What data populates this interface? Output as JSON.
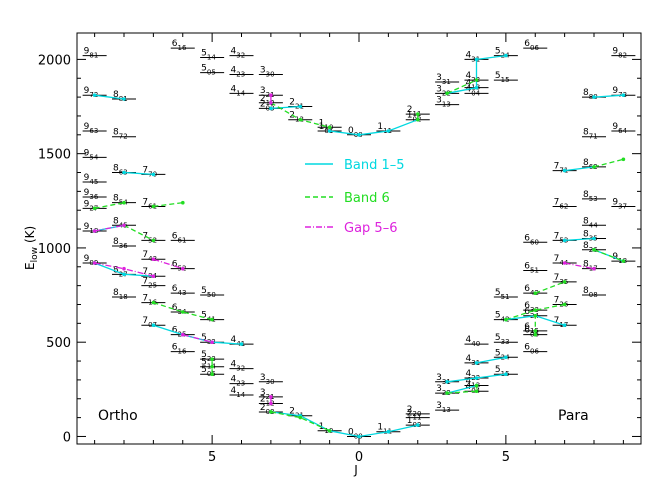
{
  "chart_data": {
    "type": "line",
    "ylabel": "E_low (K)",
    "ylabel_main": "E",
    "ylabel_sub": "low",
    "ylabel_unit": "(K)",
    "xlabel": "J",
    "ylim": [
      -40,
      2140
    ],
    "y_ticks": [
      0,
      500,
      1000,
      1500,
      2000
    ],
    "x_ticks": [
      {
        "pos": -5,
        "label": "5"
      },
      {
        "pos": 0,
        "label": "0"
      },
      {
        "pos": 5,
        "label": "5"
      }
    ],
    "xlim": [
      -9.6,
      9.6
    ],
    "left_corner_label": "Ortho",
    "right_corner_label": "Para",
    "legend": [
      {
        "label": "Band 1–5",
        "color": "#00d8e0",
        "style": "solid"
      },
      {
        "label": "Band 6",
        "color": "#22dd22",
        "style": "dashed"
      },
      {
        "label": "Gap 5–6",
        "color": "#dd22dd",
        "style": "dashdot"
      }
    ],
    "levels": [
      {
        "J": -1,
        "E": 30,
        "t": "1",
        "s": "10"
      },
      {
        "J": 0,
        "E": 0,
        "t": "0",
        "s": "00"
      },
      {
        "J": 1,
        "E": 25,
        "t": "1",
        "s": "11"
      },
      {
        "J": 2,
        "E": 60,
        "t": "1",
        "s": "02"
      },
      {
        "J": 2,
        "E": 120,
        "t": "2",
        "s": "20"
      },
      {
        "J": 2,
        "E": 100,
        "t": "2",
        "s": "11"
      },
      {
        "J": 3,
        "E": 140,
        "t": "3",
        "s": "13"
      },
      {
        "J": -2,
        "E": 110,
        "t": "2",
        "s": "21"
      },
      {
        "J": -3,
        "E": 130,
        "t": "2",
        "s": "03"
      },
      {
        "J": -3,
        "E": 175,
        "t": "2",
        "s": "12"
      },
      {
        "J": -3,
        "E": 210,
        "t": "3",
        "s": "21"
      },
      {
        "J": -4,
        "E": 220,
        "t": "4",
        "s": "14"
      },
      {
        "J": -3,
        "E": 290,
        "t": "3",
        "s": "30"
      },
      {
        "J": -5,
        "E": 330,
        "t": "5",
        "s": "05"
      },
      {
        "J": -5,
        "E": 370,
        "t": "5",
        "s": "14"
      },
      {
        "J": -5,
        "E": 410,
        "t": "5",
        "s": "23"
      },
      {
        "J": -4,
        "E": 280,
        "t": "4",
        "s": "23"
      },
      {
        "J": -4,
        "E": 360,
        "t": "4",
        "s": "32"
      },
      {
        "J": -4,
        "E": 490,
        "t": "4",
        "s": "41"
      },
      {
        "J": -6,
        "E": 450,
        "t": "6",
        "s": "16"
      },
      {
        "J": -6,
        "E": 540,
        "t": "6",
        "s": "25"
      },
      {
        "J": -5,
        "E": 500,
        "t": "5",
        "s": "32"
      },
      {
        "J": -5,
        "E": 620,
        "t": "5",
        "s": "41"
      },
      {
        "J": -5,
        "E": 750,
        "t": "5",
        "s": "50"
      },
      {
        "J": -7,
        "E": 590,
        "t": "7",
        "s": "07"
      },
      {
        "J": -6,
        "E": 660,
        "t": "6",
        "s": "34"
      },
      {
        "J": -6,
        "E": 760,
        "t": "6",
        "s": "43"
      },
      {
        "J": -7,
        "E": 710,
        "t": "7",
        "s": "16"
      },
      {
        "J": -7,
        "E": 800,
        "t": "7",
        "s": "25"
      },
      {
        "J": -7,
        "E": 850,
        "t": "7",
        "s": "34"
      },
      {
        "J": -7,
        "E": 940,
        "t": "7",
        "s": "43"
      },
      {
        "J": -6,
        "E": 890,
        "t": "6",
        "s": "52"
      },
      {
        "J": -8,
        "E": 740,
        "t": "8",
        "s": "18"
      },
      {
        "J": -8,
        "E": 860,
        "t": "8",
        "s": "27"
      },
      {
        "J": -9,
        "E": 920,
        "t": "9",
        "s": "09"
      },
      {
        "J": -8,
        "E": 1010,
        "t": "8",
        "s": "36"
      },
      {
        "J": -9,
        "E": 1090,
        "t": "9",
        "s": "18"
      },
      {
        "J": -8,
        "E": 1120,
        "t": "8",
        "s": "45"
      },
      {
        "J": -7,
        "E": 1040,
        "t": "7",
        "s": "52"
      },
      {
        "J": -6,
        "E": 1040,
        "t": "6",
        "s": "61"
      },
      {
        "J": -9,
        "E": 1210,
        "t": "9",
        "s": "27"
      },
      {
        "J": -8,
        "E": 1240,
        "t": "8",
        "s": "54"
      },
      {
        "J": -7,
        "E": 1220,
        "t": "7",
        "s": "61"
      },
      {
        "J": -9,
        "E": 1270,
        "t": "9",
        "s": "36"
      },
      {
        "J": -9,
        "E": 1350,
        "t": "9",
        "s": "45"
      },
      {
        "J": -8,
        "E": 1400,
        "t": "8",
        "s": "63"
      },
      {
        "J": -7,
        "E": 1390,
        "t": "7",
        "s": "70"
      },
      {
        "J": -9,
        "E": 1480,
        "t": "9",
        "s": "54"
      },
      {
        "J": -9,
        "E": 1620,
        "t": "9",
        "s": "63"
      },
      {
        "J": -8,
        "E": 1590,
        "t": "8",
        "s": "72"
      },
      {
        "J": -9,
        "E": 1810,
        "t": "9",
        "s": "72"
      },
      {
        "J": -8,
        "E": 1790,
        "t": "8",
        "s": "81"
      },
      {
        "J": -9,
        "E": 2020,
        "t": "9",
        "s": "81"
      },
      {
        "J": -6,
        "E": 2060,
        "t": "6",
        "s": "16"
      },
      {
        "J": -5,
        "E": 2010,
        "t": "5",
        "s": "14"
      },
      {
        "J": -4,
        "E": 2020,
        "t": "4",
        "s": "32"
      },
      {
        "J": -5,
        "E": 1930,
        "t": "5",
        "s": "05"
      },
      {
        "J": -4,
        "E": 1920,
        "t": "4",
        "s": "23"
      },
      {
        "J": -3,
        "E": 1920,
        "t": "3",
        "s": "30"
      },
      {
        "J": -4,
        "E": 1820,
        "t": "4",
        "s": "14"
      },
      {
        "J": -3,
        "E": 1810,
        "t": "3",
        "s": "21"
      },
      {
        "J": -3,
        "E": 1770,
        "t": "2",
        "s": "12"
      },
      {
        "J": -3,
        "E": 1740,
        "t": "2",
        "s": "03"
      },
      {
        "J": -2,
        "E": 1750,
        "t": "2",
        "s": "21"
      },
      {
        "J": -2,
        "E": 1680,
        "t": "2",
        "s": "12"
      },
      {
        "J": -1,
        "E": 1640,
        "t": "1",
        "s": "10"
      },
      {
        "J": -1,
        "E": 1620,
        "t": "1",
        "s": "01"
      },
      {
        "J": 0,
        "E": 1600,
        "t": "0",
        "s": "00"
      },
      {
        "J": 1,
        "E": 1620,
        "t": "1",
        "s": "11"
      },
      {
        "J": 2,
        "E": 1680,
        "t": "1",
        "s": "02"
      },
      {
        "J": 2,
        "E": 1710,
        "t": "2",
        "s": "11"
      },
      {
        "J": 3,
        "E": 1760,
        "t": "3",
        "s": "13"
      },
      {
        "J": 3,
        "E": 1820,
        "t": "3",
        "s": "22"
      },
      {
        "J": 3,
        "E": 1880,
        "t": "3",
        "s": "31"
      },
      {
        "J": 4,
        "E": 1820,
        "t": "4",
        "s": "04"
      },
      {
        "J": 4,
        "E": 1850,
        "t": "4",
        "s": "13"
      },
      {
        "J": 4,
        "E": 1890,
        "t": "4",
        "s": "22"
      },
      {
        "J": 5,
        "E": 1890,
        "t": "5",
        "s": "15"
      },
      {
        "J": 4,
        "E": 2000,
        "t": "4",
        "s": "31"
      },
      {
        "J": 5,
        "E": 2020,
        "t": "5",
        "s": "24"
      },
      {
        "J": 6,
        "E": 2060,
        "t": "6",
        "s": "06"
      },
      {
        "J": 9,
        "E": 2020,
        "t": "9",
        "s": "82"
      },
      {
        "J": 8,
        "E": 1800,
        "t": "8",
        "s": "80"
      },
      {
        "J": 9,
        "E": 1810,
        "t": "9",
        "s": "73"
      },
      {
        "J": 8,
        "E": 1590,
        "t": "8",
        "s": "71"
      },
      {
        "J": 9,
        "E": 1620,
        "t": "9",
        "s": "64"
      },
      {
        "J": 7,
        "E": 1410,
        "t": "7",
        "s": "71"
      },
      {
        "J": 8,
        "E": 1430,
        "t": "8",
        "s": "62"
      },
      {
        "J": 8,
        "E": 1260,
        "t": "8",
        "s": "53"
      },
      {
        "J": 7,
        "E": 1220,
        "t": "7",
        "s": "62"
      },
      {
        "J": 9,
        "E": 1220,
        "t": "9",
        "s": "37"
      },
      {
        "J": 8,
        "E": 1120,
        "t": "8",
        "s": "44"
      },
      {
        "J": 8,
        "E": 1050,
        "t": "8",
        "s": "35"
      },
      {
        "J": 7,
        "E": 1040,
        "t": "7",
        "s": "53"
      },
      {
        "J": 6,
        "E": 1030,
        "t": "6",
        "s": "60"
      },
      {
        "J": 8,
        "E": 990,
        "t": "8",
        "s": "26"
      },
      {
        "J": 9,
        "E": 930,
        "t": "9",
        "s": "18"
      },
      {
        "J": 7,
        "E": 920,
        "t": "7",
        "s": "44"
      },
      {
        "J": 8,
        "E": 890,
        "t": "8",
        "s": "17"
      },
      {
        "J": 6,
        "E": 880,
        "t": "6",
        "s": "51"
      },
      {
        "J": 7,
        "E": 820,
        "t": "7",
        "s": "35"
      },
      {
        "J": 8,
        "E": 750,
        "t": "8",
        "s": "08"
      },
      {
        "J": 6,
        "E": 760,
        "t": "6",
        "s": "42"
      },
      {
        "J": 5,
        "E": 740,
        "t": "5",
        "s": "51"
      },
      {
        "J": 7,
        "E": 700,
        "t": "7",
        "s": "26"
      },
      {
        "J": 6,
        "E": 670,
        "t": "6",
        "s": "33"
      },
      {
        "J": 6,
        "E": 640,
        "t": "6",
        "s": "24"
      },
      {
        "J": 5,
        "E": 620,
        "t": "5",
        "s": "42"
      },
      {
        "J": 7,
        "E": 590,
        "t": "7",
        "s": "17"
      },
      {
        "J": 6,
        "E": 560,
        "t": "6",
        "s": "15"
      },
      {
        "J": 6,
        "E": 540,
        "t": "6",
        "s": "06"
      },
      {
        "J": 5,
        "E": 500,
        "t": "5",
        "s": "33"
      },
      {
        "J": 4,
        "E": 490,
        "t": "4",
        "s": "40"
      },
      {
        "J": 6,
        "E": 450,
        "t": "6",
        "s": "06"
      },
      {
        "J": 5,
        "E": 420,
        "t": "5",
        "s": "24"
      },
      {
        "J": 4,
        "E": 390,
        "t": "4",
        "s": "31"
      },
      {
        "J": 5,
        "E": 330,
        "t": "5",
        "s": "15"
      },
      {
        "J": 4,
        "E": 310,
        "t": "4",
        "s": "22"
      },
      {
        "J": 3,
        "E": 290,
        "t": "3",
        "s": "31"
      },
      {
        "J": 4,
        "E": 270,
        "t": "4",
        "s": "13"
      },
      {
        "J": 3,
        "E": 230,
        "t": "3",
        "s": "22"
      },
      {
        "J": 4,
        "E": 240,
        "t": "4",
        "s": "04"
      }
    ],
    "series": [
      {
        "name": "Band 1–5",
        "color": "#00d8e0",
        "style": "solid",
        "lines": [
          [
            [
              -1,
              30
            ],
            [
              0,
              0
            ],
            [
              1,
              25
            ],
            [
              2,
              60
            ]
          ],
          [
            [
              -3,
              130
            ],
            [
              -2,
              110
            ],
            [
              -1,
              30
            ]
          ],
          [
            [
              -7,
              590
            ],
            [
              -6,
              540
            ],
            [
              -5,
              500
            ],
            [
              -4,
              490
            ]
          ],
          [
            [
              -9,
              920
            ],
            [
              -8,
              860
            ],
            [
              -7,
              850
            ]
          ],
          [
            [
              -9,
              1090
            ],
            [
              -8,
              1120
            ]
          ],
          [
            [
              -9,
              1810
            ],
            [
              -8,
              1790
            ]
          ],
          [
            [
              -8,
              1400
            ],
            [
              -7,
              1390
            ]
          ],
          [
            [
              -3,
              1740
            ],
            [
              -2,
              1750
            ]
          ],
          [
            [
              -1,
              1620
            ],
            [
              0,
              1600
            ],
            [
              1,
              1620
            ],
            [
              2,
              1680
            ]
          ],
          [
            [
              3,
              1820
            ],
            [
              4,
              1850
            ],
            [
              4,
              2000
            ],
            [
              5,
              2020
            ]
          ],
          [
            [
              3,
              290
            ],
            [
              4,
              310
            ],
            [
              5,
              330
            ]
          ],
          [
            [
              4,
              390
            ],
            [
              5,
              420
            ]
          ],
          [
            [
              5,
              620
            ],
            [
              6,
              640
            ],
            [
              7,
              590
            ]
          ],
          [
            [
              7,
              1410
            ],
            [
              8,
              1430
            ]
          ],
          [
            [
              8,
              1800
            ],
            [
              9,
              1810
            ]
          ],
          [
            [
              7,
              1040
            ],
            [
              8,
              1050
            ]
          ],
          [
            [
              8,
              990
            ],
            [
              9,
              930
            ]
          ],
          [
            [
              3,
              230
            ],
            [
              4,
              270
            ]
          ]
        ]
      },
      {
        "name": "Band 6",
        "color": "#22dd22",
        "style": "dashed",
        "lines": [
          [
            [
              -3,
              130
            ],
            [
              -2,
              100
            ],
            [
              -1,
              30
            ]
          ],
          [
            [
              -5,
              330
            ],
            [
              -5,
              370
            ],
            [
              -5,
              410
            ]
          ],
          [
            [
              -7,
              710
            ],
            [
              -6,
              660
            ],
            [
              -5,
              620
            ]
          ],
          [
            [
              -9,
              1210
            ],
            [
              -8,
              1240
            ]
          ],
          [
            [
              -8,
              1120
            ],
            [
              -7,
              1040
            ]
          ],
          [
            [
              -7,
              1220
            ],
            [
              -6,
              1240
            ]
          ],
          [
            [
              -3,
              1770
            ],
            [
              -2,
              1680
            ],
            [
              -1,
              1640
            ]
          ],
          [
            [
              2,
              1680
            ],
            [
              2,
              1710
            ]
          ],
          [
            [
              3,
              1820
            ],
            [
              4,
              1890
            ]
          ],
          [
            [
              3,
              230
            ],
            [
              4,
              240
            ],
            [
              4,
              270
            ]
          ],
          [
            [
              5,
              620
            ],
            [
              6,
              670
            ],
            [
              7,
              700
            ]
          ],
          [
            [
              6,
              540
            ],
            [
              6,
              560
            ],
            [
              6,
              640
            ]
          ],
          [
            [
              6,
              760
            ],
            [
              7,
              820
            ]
          ],
          [
            [
              8,
              1430
            ],
            [
              9,
              1470
            ]
          ],
          [
            [
              8,
              990
            ],
            [
              9,
              930
            ]
          ]
        ]
      },
      {
        "name": "Gap 5–6",
        "color": "#dd22dd",
        "style": "dashdot",
        "lines": [
          [
            [
              -9,
              920
            ],
            [
              -8,
              890
            ],
            [
              -7,
              850
            ]
          ],
          [
            [
              -9,
              1090
            ],
            [
              -8,
              1120
            ]
          ],
          [
            [
              -7,
              940
            ],
            [
              -6,
              890
            ]
          ],
          [
            [
              -6,
              540
            ],
            [
              -5,
              500
            ]
          ],
          [
            [
              -3,
              175
            ],
            [
              -3,
              210
            ]
          ],
          [
            [
              -3,
              1770
            ],
            [
              -3,
              1810
            ]
          ],
          [
            [
              7,
              920
            ],
            [
              8,
              890
            ]
          ]
        ]
      }
    ]
  }
}
